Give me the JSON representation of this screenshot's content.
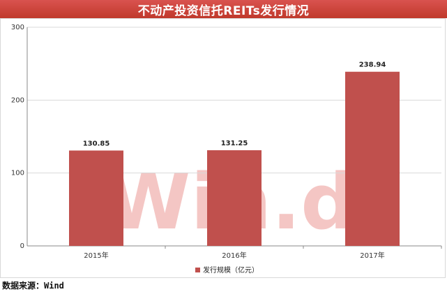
{
  "header": {
    "title": "不动产投资信托REITs发行情况"
  },
  "watermark": {
    "text": "Win.d"
  },
  "footer": {
    "source": "数据来源：Wind"
  },
  "colors": {
    "bar": "#c0504d",
    "title_bg": "#c9403a",
    "watermark": "#f4c6c4"
  },
  "chart_data": {
    "type": "bar",
    "title": "不动产投资信托REITs发行情况",
    "categories": [
      "2015年",
      "2016年",
      "2017年"
    ],
    "series": [
      {
        "name": "发行规模（亿元）",
        "values": [
          130.85,
          131.25,
          238.94
        ]
      }
    ],
    "data_labels": [
      "130.85",
      "131.25",
      "238.94"
    ],
    "yticks": [
      0,
      100,
      200,
      300
    ],
    "ylim": [
      0,
      300
    ],
    "xlabel": "",
    "ylabel": "",
    "grid": true,
    "legend": "bottom-center"
  }
}
